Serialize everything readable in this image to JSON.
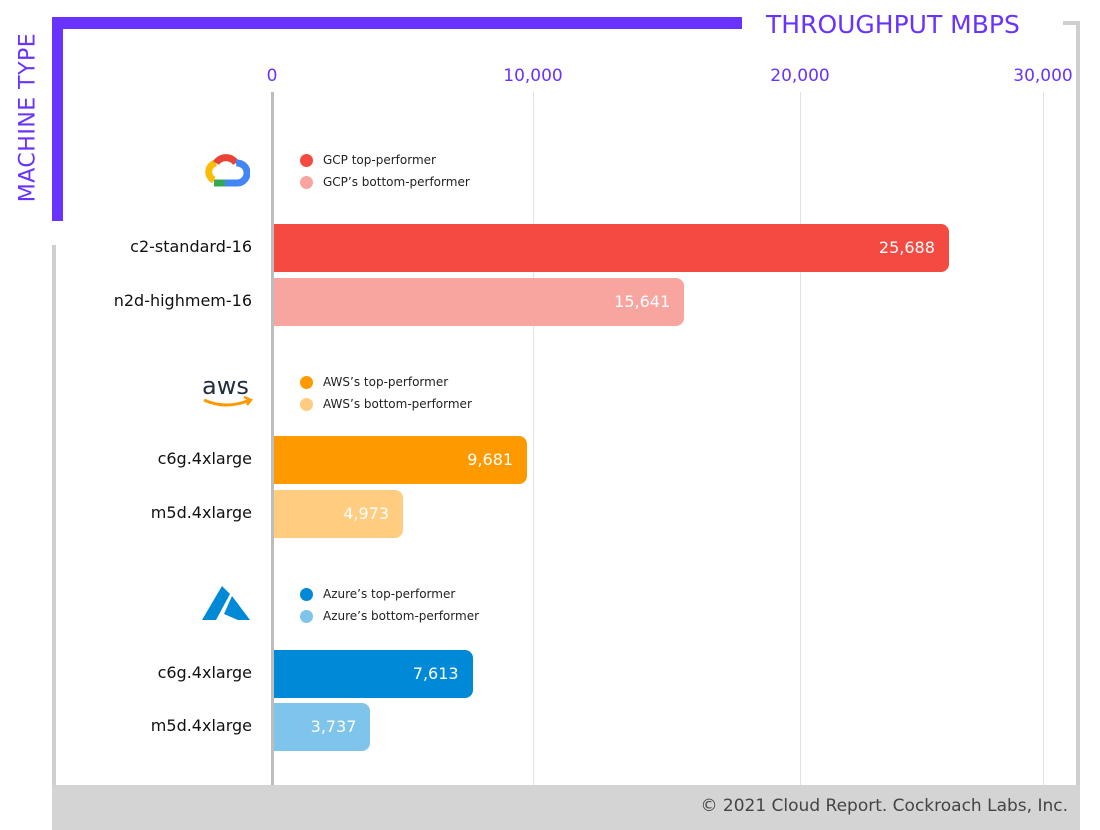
{
  "chart_data": {
    "type": "bar",
    "orientation": "horizontal",
    "xlabel": "THROUGHPUT MBPS",
    "ylabel": "MACHINE TYPE",
    "xlim": [
      0,
      30000
    ],
    "xticks": [
      "0",
      "10,000",
      "20,000",
      "30,000"
    ],
    "xtick_values": [
      0,
      10000,
      20000,
      30000
    ],
    "grid": true,
    "groups": [
      {
        "provider": "GCP",
        "logo": "google-cloud-logo",
        "legend": [
          "GCP top-performer",
          "GCP’s bottom-performer"
        ],
        "bars": [
          {
            "category": "c2-standard-16",
            "value": 25688,
            "label": "25,688",
            "color": "#f44a42"
          },
          {
            "category": "n2d-highmem-16",
            "value": 15641,
            "label": "15,641",
            "color": "#f8a5a0"
          }
        ]
      },
      {
        "provider": "AWS",
        "logo": "aws-logo",
        "legend": [
          "AWS’s top-performer",
          "AWS’s bottom-performer"
        ],
        "bars": [
          {
            "category": "c6g.4xlarge",
            "value": 9681,
            "label": "9,681",
            "color": "#ff9900"
          },
          {
            "category": "m5d.4xlarge",
            "value": 4973,
            "label": "4,973",
            "color": "#ffcc80"
          }
        ]
      },
      {
        "provider": "Azure",
        "logo": "azure-logo",
        "legend": [
          "Azure’s top-performer",
          "Azure’s bottom-performer"
        ],
        "bars": [
          {
            "category": "c6g.4xlarge",
            "value": 7613,
            "label": "7,613",
            "color": "#0089d6"
          },
          {
            "category": "m5d.4xlarge",
            "value": 3737,
            "label": "3,737",
            "color": "#7fc4ea"
          }
        ]
      }
    ]
  },
  "footer": {
    "copyright": "© 2021 Cloud Report. Cockroach Labs, Inc."
  },
  "colors": {
    "accent": "#6933ff"
  }
}
